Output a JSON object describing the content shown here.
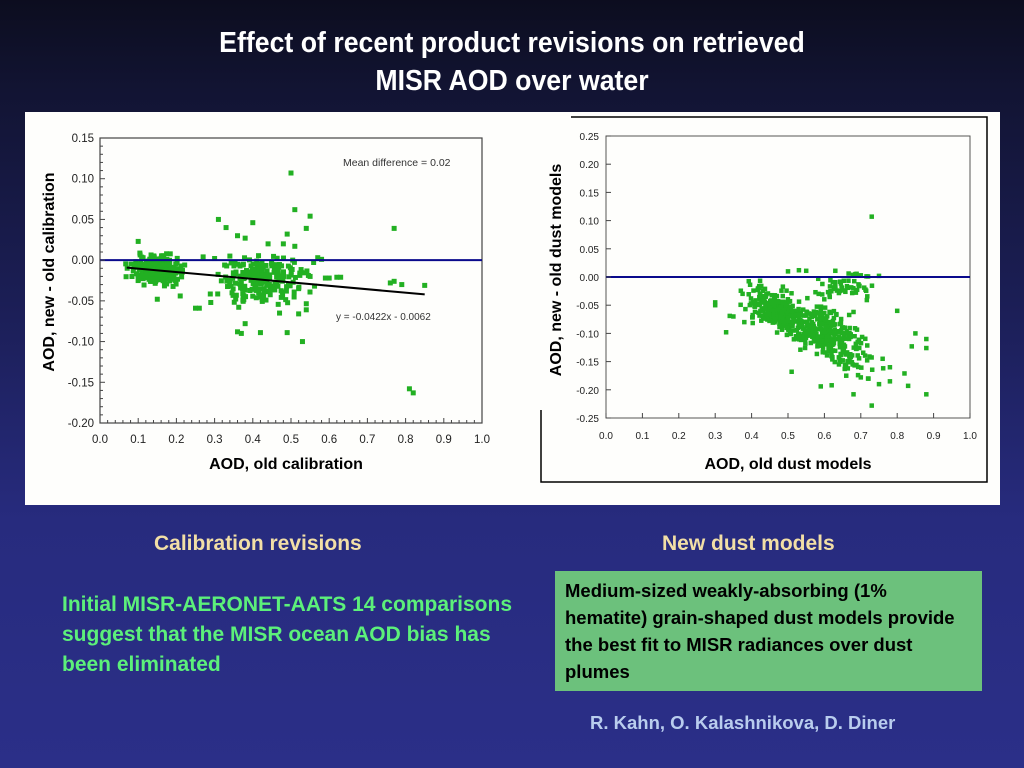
{
  "slide": {
    "title_line1": "Effect of recent product revisions on retrieved",
    "title_line2": "MISR AOD over water",
    "left_heading": "Calibration revisions",
    "right_heading": "New dust models",
    "left_text": "Initial MISR-AERONET-AATS 14 comparisons suggest that the MISR ocean AOD bias has been eliminated",
    "right_box_text": "Medium-sized weakly-absorbing (1% hematite) grain-shaped dust models provide the best fit to MISR radiances over dust plumes",
    "authors": "R. Kahn, O. Kalashnikova, D. Diner",
    "colors": {
      "background_top": "#0c0d1f",
      "background_bottom": "#2b2f88",
      "heading": "#f2dfa6",
      "left_text": "#5cf07a",
      "box_fill": "#6cc17c",
      "authors": "#b9cdee",
      "points": "#22b022",
      "zero_line": "#0a0a8c",
      "fit_line": "#000000"
    }
  },
  "chart_data": [
    {
      "type": "scatter",
      "title": "",
      "xlabel": "AOD, old calibration",
      "ylabel": "AOD, new - old calibration",
      "xlim": [
        0.0,
        1.0
      ],
      "ylim": [
        -0.2,
        0.15
      ],
      "xticks": [
        "0.0",
        "0.1",
        "0.2",
        "0.3",
        "0.4",
        "0.5",
        "0.6",
        "0.7",
        "0.8",
        "0.9",
        "1.0"
      ],
      "yticks": [
        "0.15",
        "0.10",
        "0.05",
        "0.00",
        "-0.05",
        "-0.10",
        "-0.15",
        "-0.20"
      ],
      "ytick_values": [
        0.15,
        0.1,
        0.05,
        0.0,
        -0.05,
        -0.1,
        -0.15,
        -0.2
      ],
      "grid": false,
      "reference_line_y": 0.0,
      "annotations": [
        "Mean difference = 0.02",
        "y = -0.0422x - 0.0062"
      ],
      "fit": {
        "slope": -0.0422,
        "intercept": -0.0062,
        "x_range": [
          0.07,
          0.85
        ]
      },
      "clusters": [
        {
          "x_center": 0.15,
          "x_spread": 0.05,
          "y_center": -0.012,
          "y_spread": 0.008,
          "count": 260
        },
        {
          "x_center": 0.42,
          "x_spread": 0.09,
          "y_center": -0.025,
          "y_spread": 0.014,
          "count": 220
        }
      ],
      "points": [
        [
          0.1,
          0.023
        ],
        [
          0.15,
          -0.048
        ],
        [
          0.21,
          -0.044
        ],
        [
          0.25,
          -0.059
        ],
        [
          0.26,
          -0.059
        ],
        [
          0.29,
          -0.052
        ],
        [
          0.31,
          0.05
        ],
        [
          0.33,
          0.04
        ],
        [
          0.36,
          -0.088
        ],
        [
          0.37,
          -0.09
        ],
        [
          0.38,
          -0.078
        ],
        [
          0.4,
          0.046
        ],
        [
          0.42,
          -0.089
        ],
        [
          0.44,
          0.02
        ],
        [
          0.47,
          -0.065
        ],
        [
          0.49,
          -0.089
        ],
        [
          0.5,
          0.107
        ],
        [
          0.51,
          0.062
        ],
        [
          0.51,
          0.017
        ],
        [
          0.52,
          -0.066
        ],
        [
          0.53,
          -0.1
        ],
        [
          0.54,
          -0.061
        ],
        [
          0.55,
          0.054
        ],
        [
          0.54,
          0.039
        ],
        [
          0.49,
          0.032
        ],
        [
          0.48,
          0.02
        ],
        [
          0.36,
          0.03
        ],
        [
          0.38,
          0.027
        ],
        [
          0.57,
          0.003
        ],
        [
          0.58,
          0.001
        ],
        [
          0.59,
          -0.022
        ],
        [
          0.6,
          -0.022
        ],
        [
          0.62,
          -0.021
        ],
        [
          0.63,
          -0.021
        ],
        [
          0.76,
          -0.028
        ],
        [
          0.77,
          -0.026
        ],
        [
          0.77,
          0.039
        ],
        [
          0.79,
          -0.03
        ],
        [
          0.85,
          -0.031
        ],
        [
          0.81,
          -0.158
        ],
        [
          0.82,
          -0.163
        ],
        [
          0.27,
          0.004
        ],
        [
          0.3,
          0.002
        ],
        [
          0.34,
          0.005
        ],
        [
          0.45,
          -0.005
        ],
        [
          0.52,
          -0.035
        ],
        [
          0.55,
          -0.02
        ]
      ]
    },
    {
      "type": "scatter",
      "title": "",
      "xlabel": "AOD, old dust models",
      "ylabel": "AOD, new - old dust models",
      "xlim": [
        0.0,
        1.0
      ],
      "ylim": [
        -0.25,
        0.25
      ],
      "xticks": [
        "0.0",
        "0.1",
        "0.2",
        "0.3",
        "0.4",
        "0.5",
        "0.6",
        "0.7",
        "0.8",
        "0.9",
        "1.0"
      ],
      "yticks": [
        "0.25",
        "0.20",
        "0.15",
        "0.10",
        "0.05",
        "0.00",
        "-0.05",
        "-0.10",
        "-0.15",
        "-0.20",
        "-0.25"
      ],
      "ytick_values": [
        0.25,
        0.2,
        0.15,
        0.1,
        0.05,
        0.0,
        -0.05,
        -0.1,
        -0.15,
        -0.2,
        -0.25
      ],
      "grid": false,
      "reference_line_y": 0.0,
      "clusters": [
        {
          "x_center": 0.48,
          "x_spread": 0.07,
          "y_center": -0.065,
          "y_spread": 0.017,
          "count": 320,
          "slope": -0.35
        },
        {
          "x_center": 0.62,
          "x_spread": 0.08,
          "y_center": -0.105,
          "y_spread": 0.022,
          "count": 260,
          "slope": -0.35
        },
        {
          "x_center": 0.65,
          "x_spread": 0.07,
          "y_center": -0.015,
          "y_spread": 0.012,
          "count": 50,
          "slope": 0.0
        }
      ],
      "points": [
        [
          0.73,
          0.107
        ],
        [
          0.3,
          -0.045
        ],
        [
          0.3,
          -0.05
        ],
        [
          0.33,
          -0.098
        ],
        [
          0.34,
          -0.069
        ],
        [
          0.35,
          -0.07
        ],
        [
          0.38,
          -0.08
        ],
        [
          0.51,
          -0.168
        ],
        [
          0.59,
          -0.194
        ],
        [
          0.62,
          -0.192
        ],
        [
          0.68,
          -0.208
        ],
        [
          0.73,
          -0.228
        ],
        [
          0.8,
          -0.06
        ],
        [
          0.85,
          -0.1
        ],
        [
          0.88,
          -0.11
        ],
        [
          0.88,
          -0.126
        ],
        [
          0.88,
          -0.208
        ],
        [
          0.84,
          -0.123
        ],
        [
          0.82,
          -0.171
        ],
        [
          0.83,
          -0.193
        ],
        [
          0.75,
          -0.19
        ],
        [
          0.72,
          -0.18
        ],
        [
          0.78,
          -0.185
        ],
        [
          0.5,
          0.01
        ],
        [
          0.53,
          0.012
        ],
        [
          0.55,
          0.011
        ],
        [
          0.63,
          0.011
        ],
        [
          0.7,
          0.003
        ],
        [
          0.72,
          0.001
        ],
        [
          0.75,
          0.002
        ],
        [
          0.68,
          -0.062
        ],
        [
          0.66,
          -0.175
        ],
        [
          0.7,
          -0.178
        ],
        [
          0.78,
          -0.16
        ],
        [
          0.76,
          -0.145
        ],
        [
          0.64,
          -0.155
        ]
      ]
    }
  ]
}
